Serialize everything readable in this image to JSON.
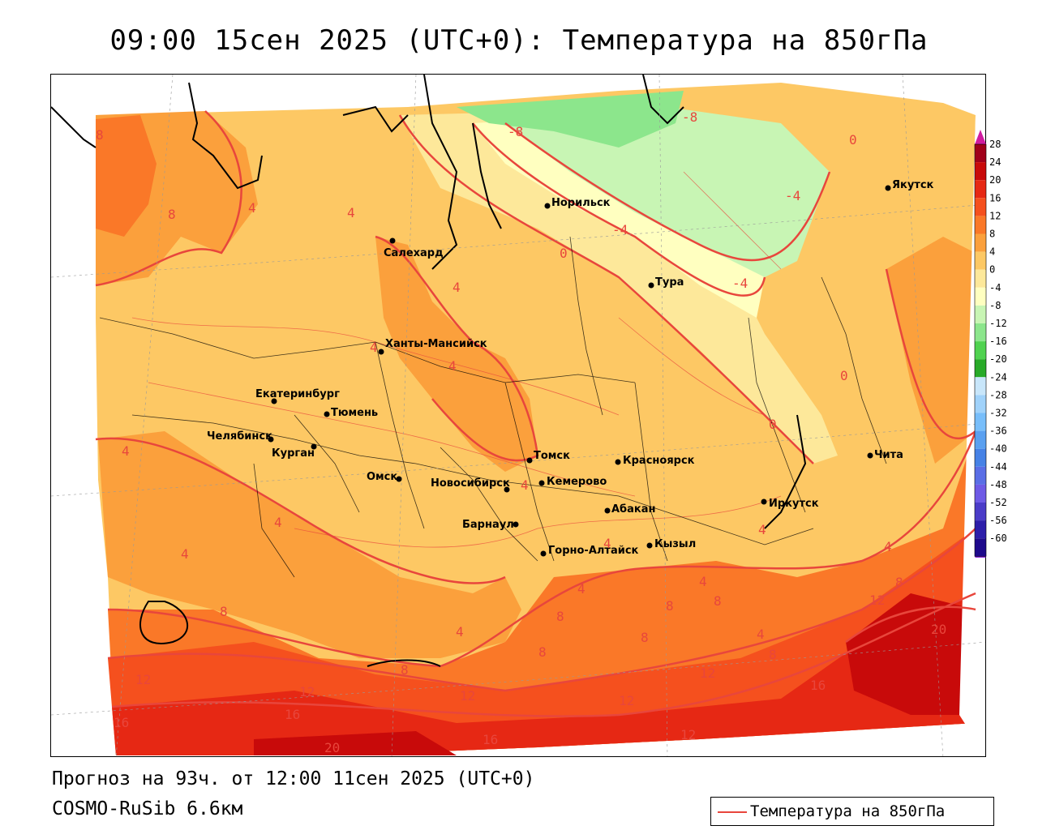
{
  "title": "09:00 15сен 2025 (UTC+0): Температура на 850гПа",
  "forecast_text": "Прогноз на 93ч. от 12:00 11сен 2025 (UTC+0)",
  "model_text": "COSMO-RuSib 6.6км",
  "legend": {
    "label": "Температура на 850гПа",
    "line_color": "#e8463c"
  },
  "colorbar": {
    "labels": [
      "28",
      "24",
      "20",
      "16",
      "12",
      "8",
      "4",
      "0",
      "-4",
      "-8",
      "-12",
      "-16",
      "-20",
      "-24",
      "-28",
      "-32",
      "-36",
      "-40",
      "-44",
      "-48",
      "-52",
      "-56",
      "-60"
    ],
    "colors": [
      "#a0001a",
      "#c80a0a",
      "#e62814",
      "#f5501e",
      "#fa7828",
      "#fba03c",
      "#fdc864",
      "#fde89a",
      "#ffffc0",
      "#c8f5b4",
      "#8ce68c",
      "#50d250",
      "#28aa28",
      "#c8e6fa",
      "#a0d2fa",
      "#78befa",
      "#5aa0f0",
      "#4682e6",
      "#5a6ee6",
      "#6e5ae6",
      "#4b3cc8",
      "#2d1eaa",
      "#1e0a8c"
    ]
  },
  "cities": [
    {
      "name": "Салехард"
    },
    {
      "name": "Норильск"
    },
    {
      "name": "Тура"
    },
    {
      "name": "Якутск"
    },
    {
      "name": "Ханты-Мансийск"
    },
    {
      "name": "Екатеринбург"
    },
    {
      "name": "Тюмень"
    },
    {
      "name": "Челябинск"
    },
    {
      "name": "Курган"
    },
    {
      "name": "Омск"
    },
    {
      "name": "Новосибирск"
    },
    {
      "name": "Томск"
    },
    {
      "name": "Кемерово"
    },
    {
      "name": "Красноярск"
    },
    {
      "name": "Барнаул"
    },
    {
      "name": "Абакан"
    },
    {
      "name": "Горно-Алтайск"
    },
    {
      "name": "Кызыл"
    },
    {
      "name": "Иркутск"
    },
    {
      "name": "Чита"
    }
  ],
  "isotherm_labels": [
    "8",
    "8",
    "4",
    "4",
    "4",
    "-8",
    "-8",
    "0",
    "-4",
    "-4",
    "0",
    "-4",
    "4",
    "4",
    "4",
    "4",
    "4",
    "0",
    "0",
    "4",
    "4",
    "4",
    "4",
    "4",
    "4",
    "4",
    "8",
    "8",
    "8",
    "8",
    "8",
    "8",
    "8",
    "8",
    "12",
    "12",
    "12",
    "12",
    "12",
    "12",
    "16",
    "16",
    "16",
    "16",
    "20",
    "20",
    "4",
    "8",
    "12"
  ]
}
